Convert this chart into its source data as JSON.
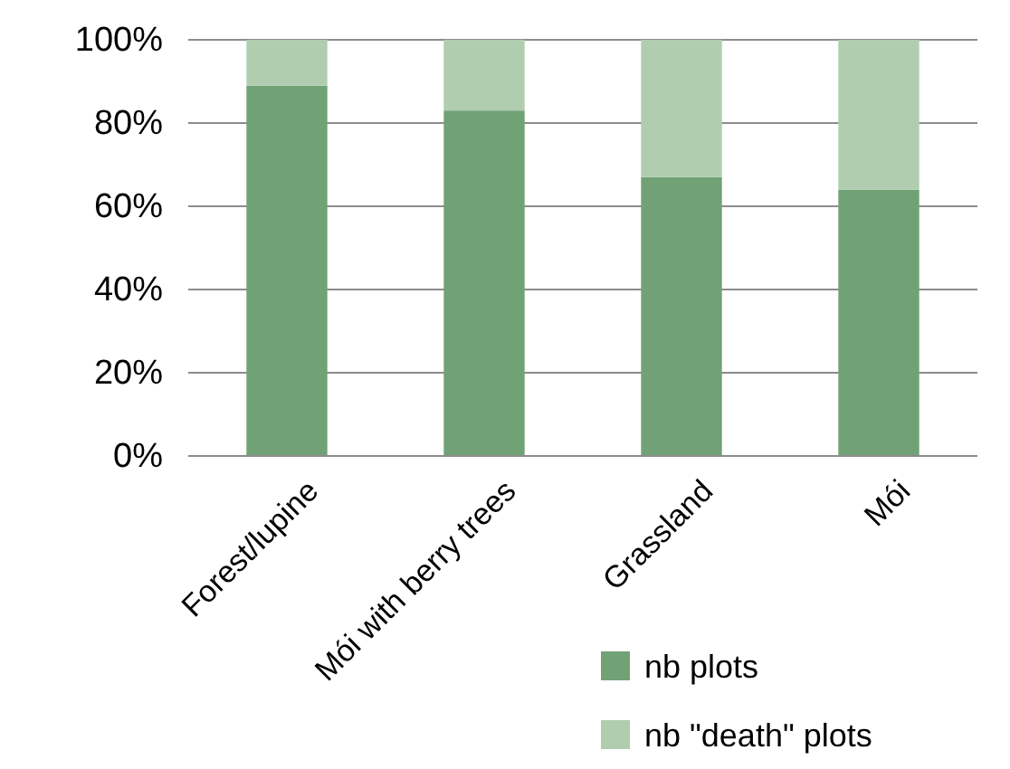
{
  "chart_data": {
    "type": "bar",
    "stacked": true,
    "categories": [
      "Forest/lupine",
      "Mói with berry trees",
      "Grassland",
      "Mói"
    ],
    "series": [
      {
        "name": "nb plots",
        "color": "#71a276",
        "values": [
          89,
          83,
          67,
          64
        ]
      },
      {
        "name": "nb \"death\" plots",
        "color": "#b0cdb0",
        "values": [
          11,
          17,
          33,
          36
        ]
      }
    ],
    "ylim": [
      0,
      100
    ],
    "yticks": [
      {
        "value": 0,
        "label": "0%"
      },
      {
        "value": 20,
        "label": "20%"
      },
      {
        "value": 40,
        "label": "40%"
      },
      {
        "value": 60,
        "label": "60%"
      },
      {
        "value": 80,
        "label": "80%"
      },
      {
        "value": 100,
        "label": "100%"
      }
    ],
    "grid": "y",
    "legend": "bottom right"
  }
}
